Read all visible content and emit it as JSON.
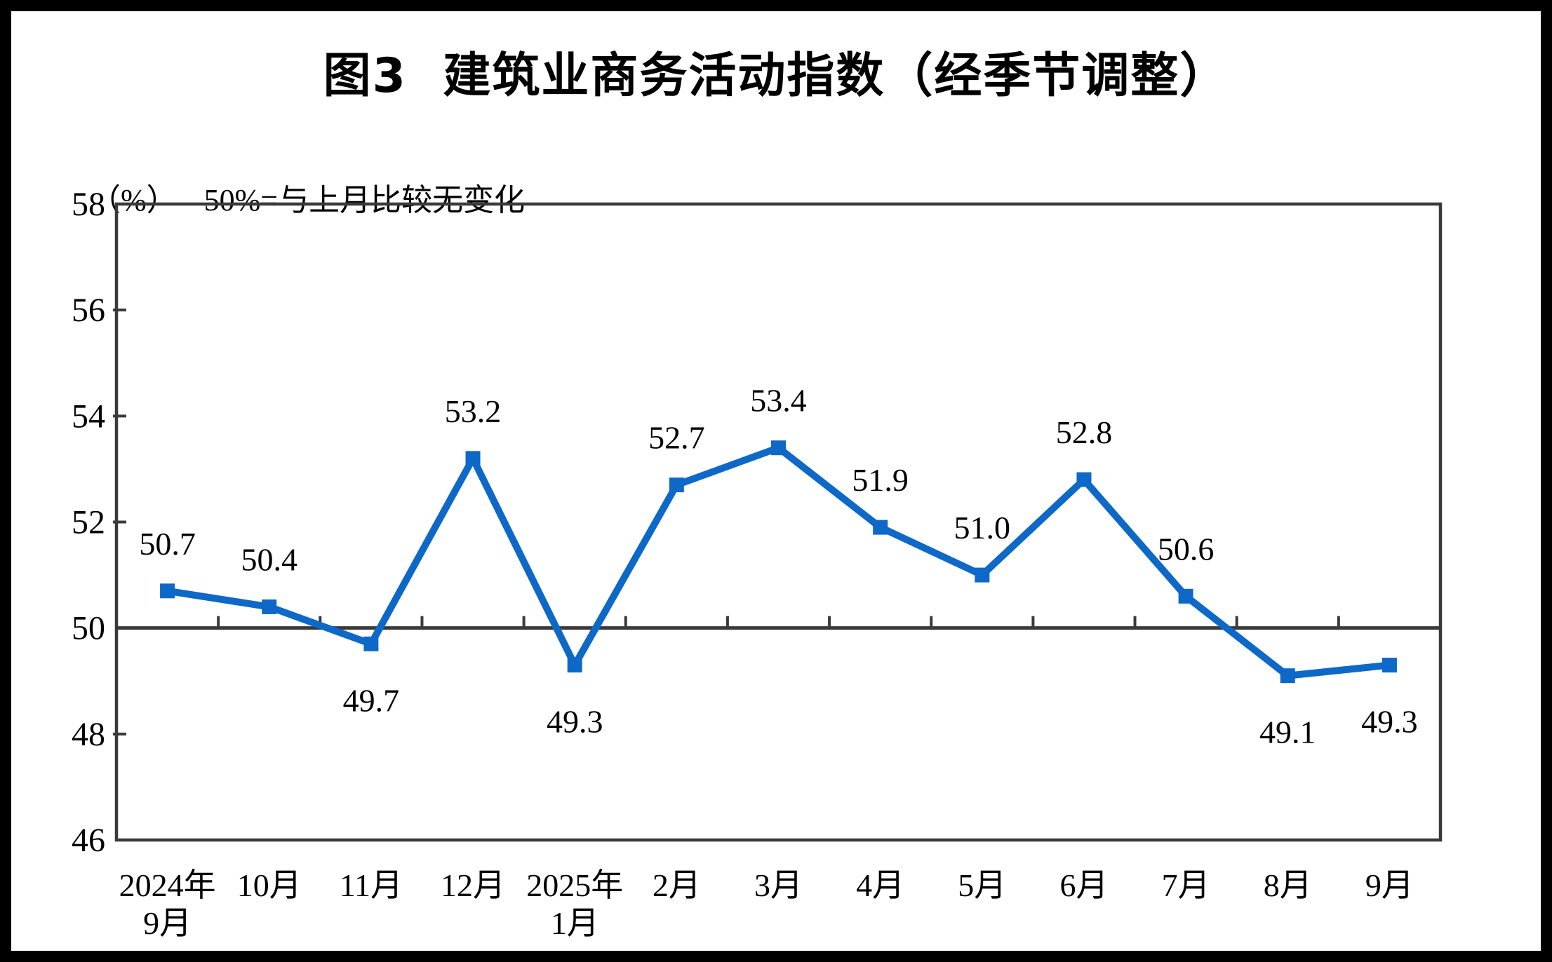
{
  "page": {
    "frame_color": "#000000",
    "background_color": "#ffffff"
  },
  "chart_data": {
    "type": "line",
    "title": "图3  建筑业商务活动指数（经季节调整）",
    "unit_label": "（%）",
    "note": "50%=与上月比较无变化",
    "categories": [
      [
        "2024年",
        "9月"
      ],
      [
        "10月"
      ],
      [
        "11月"
      ],
      [
        "12月"
      ],
      [
        "2025年",
        "1月"
      ],
      [
        "2月"
      ],
      [
        "3月"
      ],
      [
        "4月"
      ],
      [
        "5月"
      ],
      [
        "6月"
      ],
      [
        "7月"
      ],
      [
        "8月"
      ],
      [
        "9月"
      ]
    ],
    "values": [
      50.7,
      50.4,
      49.7,
      53.2,
      49.3,
      52.7,
      53.4,
      51.9,
      51.0,
      52.8,
      50.6,
      49.1,
      49.3
    ],
    "data_labels": [
      "50.7",
      "50.4",
      "49.7",
      "53.2",
      "49.3",
      "52.7",
      "53.4",
      "51.9",
      "51.0",
      "52.8",
      "50.6",
      "49.1",
      "49.3"
    ],
    "label_positions": [
      "above",
      "above",
      "below",
      "above",
      "below",
      "above",
      "above",
      "above",
      "above",
      "above",
      "above",
      "below",
      "below"
    ],
    "y_ticks": [
      46,
      48,
      50,
      52,
      54,
      56,
      58
    ],
    "ylim": [
      46,
      58
    ],
    "baseline_value": 50,
    "marker": "square",
    "grid": false,
    "legend": false,
    "series_color": "#0d68c8",
    "axis_color": "#3a3a3a",
    "text_color": "#000000"
  }
}
